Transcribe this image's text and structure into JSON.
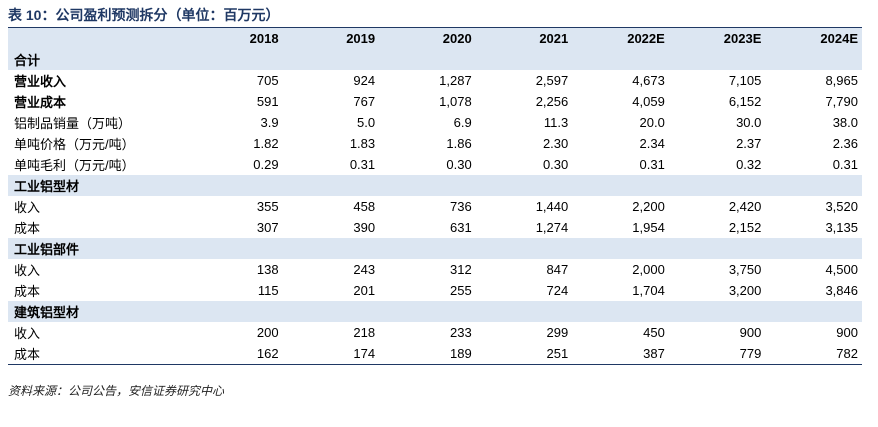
{
  "title": "表 10：公司盈利预测拆分（单位：百万元）",
  "header": {
    "columns": [
      "2018",
      "2019",
      "2020",
      "2021",
      "2022E",
      "2023E",
      "2024E"
    ]
  },
  "sections": [
    {
      "name": "合计",
      "rows": [
        {
          "label": "营业收入",
          "values": [
            "705",
            "924",
            "1,287",
            "2,597",
            "4,673",
            "7,105",
            "8,965"
          ]
        },
        {
          "label": "营业成本",
          "values": [
            "591",
            "767",
            "1,078",
            "2,256",
            "4,059",
            "6,152",
            "7,790"
          ]
        },
        {
          "label": "铝制品销量（万吨）",
          "values": [
            "3.9",
            "5.0",
            "6.9",
            "11.3",
            "20.0",
            "30.0",
            "38.0"
          ]
        },
        {
          "label": "单吨价格（万元/吨）",
          "values": [
            "1.82",
            "1.83",
            "1.86",
            "2.30",
            "2.34",
            "2.37",
            "2.36"
          ]
        },
        {
          "label": "单吨毛利（万元/吨）",
          "values": [
            "0.29",
            "0.31",
            "0.30",
            "0.30",
            "0.31",
            "0.32",
            "0.31"
          ]
        }
      ]
    },
    {
      "name": "工业铝型材",
      "rows": [
        {
          "label": "收入",
          "values": [
            "355",
            "458",
            "736",
            "1,440",
            "2,200",
            "2,420",
            "3,520"
          ]
        },
        {
          "label": "成本",
          "values": [
            "307",
            "390",
            "631",
            "1,274",
            "1,954",
            "2,152",
            "3,135"
          ]
        }
      ]
    },
    {
      "name": "工业铝部件",
      "rows": [
        {
          "label": "收入",
          "values": [
            "138",
            "243",
            "312",
            "847",
            "2,000",
            "3,750",
            "4,500"
          ]
        },
        {
          "label": "成本",
          "values": [
            "115",
            "201",
            "255",
            "724",
            "1,704",
            "3,200",
            "3,846"
          ]
        }
      ]
    },
    {
      "name": "建筑铝型材",
      "rows": [
        {
          "label": "收入",
          "values": [
            "200",
            "218",
            "233",
            "299",
            "450",
            "900",
            "900"
          ]
        },
        {
          "label": "成本",
          "values": [
            "162",
            "174",
            "189",
            "251",
            "387",
            "779",
            "782"
          ]
        }
      ]
    }
  ],
  "source": "资料来源：公司公告，安信证券研究中心"
}
